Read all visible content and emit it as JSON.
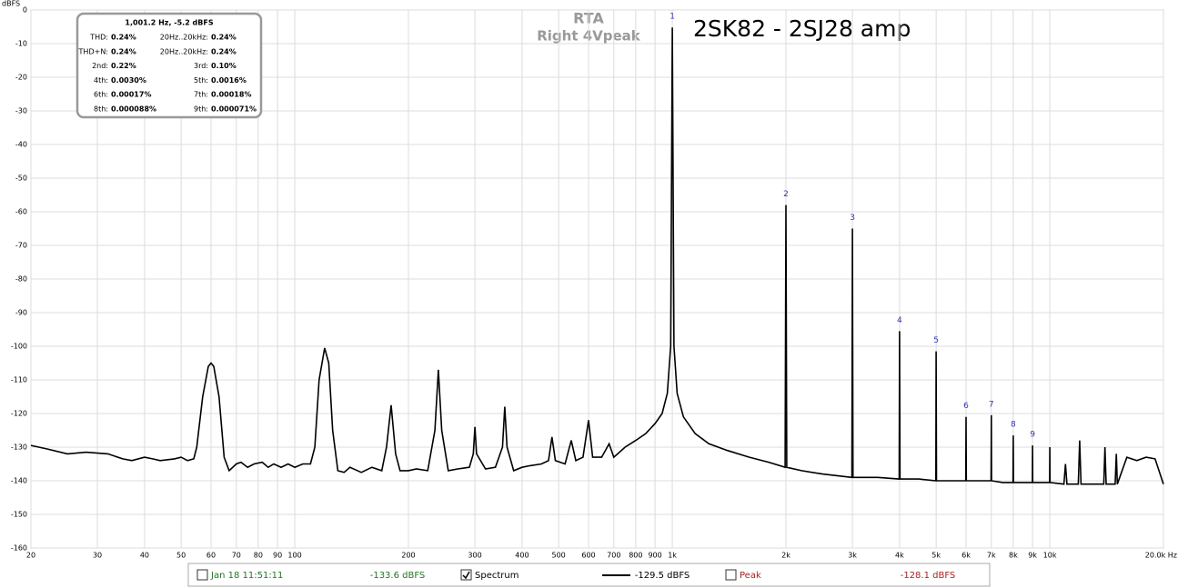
{
  "chart_data": {
    "type": "line",
    "title": "RTA",
    "subtitle": "Right 4Vpeak",
    "annotation": "2SK82 - 2SJ28 amp",
    "y_label": "dBFS",
    "x_scale": "log",
    "grid": true,
    "xlim": [
      20,
      20000
    ],
    "ylim": [
      -160,
      0
    ],
    "yticks": [
      0,
      -10,
      -20,
      -30,
      -40,
      -50,
      -60,
      -70,
      -80,
      -90,
      -100,
      -110,
      -120,
      -130,
      -140,
      -150,
      -160
    ],
    "xticks": [
      20,
      30,
      40,
      50,
      60,
      70,
      80,
      90,
      100,
      200,
      300,
      400,
      500,
      600,
      700,
      800,
      900,
      {
        "value": 1000,
        "label": "1k"
      },
      {
        "value": 2000,
        "label": "2k"
      },
      {
        "value": 3000,
        "label": "3k"
      },
      {
        "value": 4000,
        "label": "4k"
      },
      {
        "value": 5000,
        "label": "5k"
      },
      {
        "value": 6000,
        "label": "6k"
      },
      {
        "value": 7000,
        "label": "7k"
      },
      {
        "value": 8000,
        "label": "8k"
      },
      {
        "value": 9000,
        "label": "9k"
      },
      {
        "value": 10000,
        "label": "10k"
      },
      {
        "value": 20000,
        "label": "20.0k Hz"
      }
    ],
    "x": [
      20,
      22,
      25,
      28,
      32,
      35,
      37,
      40,
      42,
      44,
      48,
      50,
      52,
      54,
      55,
      57,
      59,
      60,
      61,
      63,
      65,
      67,
      70,
      72,
      75,
      78,
      82,
      85,
      88,
      92,
      96,
      100,
      105,
      110,
      113,
      116,
      120,
      123,
      126,
      130,
      135,
      140,
      150,
      160,
      170,
      175,
      180,
      185,
      190,
      200,
      210,
      225,
      235,
      240,
      245,
      255,
      270,
      290,
      297,
      300,
      303,
      320,
      340,
      355,
      360,
      365,
      380,
      400,
      420,
      450,
      470,
      480,
      490,
      520,
      540,
      555,
      580,
      600,
      615,
      650,
      680,
      700,
      750,
      800,
      850,
      900,
      940,
      970,
      990,
      1000,
      1010,
      1030,
      1070,
      1150,
      1250,
      1400,
      1600,
      1800,
      1990,
      2000,
      2010,
      2200,
      2500,
      2990,
      3000,
      3010,
      3500,
      3990,
      4000,
      4010,
      4500,
      4990,
      5000,
      5010,
      5500,
      5990,
      6000,
      6010,
      6500,
      6990,
      7000,
      7010,
      7500,
      7990,
      8000,
      8010,
      8500,
      8990,
      9000,
      9010,
      9990,
      10000,
      10010,
      10900,
      11000,
      11100,
      11900,
      12000,
      12100,
      13900,
      14000,
      14100,
      14900,
      15000,
      15100,
      16000,
      17000,
      18000,
      19000,
      20000
    ],
    "series": [
      {
        "name": "Spectrum",
        "color": "#000000",
        "values": [
          -129.5,
          -130.5,
          -132,
          -131.5,
          -132,
          -133.5,
          -134,
          -133,
          -133.5,
          -134,
          -133.5,
          -133,
          -134,
          -133.5,
          -130,
          -115,
          -106,
          -105,
          -106,
          -115,
          -133,
          -137,
          -135,
          -134.5,
          -136,
          -135,
          -134.5,
          -136,
          -135,
          -136,
          -135,
          -136,
          -135,
          -135,
          -130,
          -110,
          -100.5,
          -105,
          -125,
          -137,
          -137.5,
          -136,
          -137.5,
          -136,
          -137,
          -130,
          -117.5,
          -132,
          -137,
          -137,
          -136.5,
          -137,
          -125,
          -107,
          -125,
          -137,
          -136.5,
          -136,
          -132,
          -124,
          -132,
          -136.5,
          -136,
          -130,
          -118,
          -130,
          -137,
          -136,
          -135.5,
          -135,
          -134,
          -127,
          -134,
          -135,
          -128,
          -134,
          -133,
          -122,
          -133,
          -133,
          -129,
          -133,
          -130,
          -128,
          -126,
          -123,
          -120,
          -114,
          -100,
          -5.2,
          -100,
          -114,
          -121,
          -126,
          -129,
          -131,
          -133,
          -134.5,
          -136,
          -58,
          -136,
          -137,
          -138,
          -139,
          -65,
          -139,
          -139,
          -139.5,
          -95.5,
          -139.5,
          -139.5,
          -140,
          -101.5,
          -140,
          -140,
          -140,
          -121,
          -140,
          -140,
          -140,
          -120.5,
          -140,
          -140.5,
          -140.5,
          -126.5,
          -140.5,
          -140.5,
          -140.5,
          -129.5,
          -140.5,
          -140.5,
          -130,
          -140.5,
          -141,
          -135,
          -141,
          -141,
          -128,
          -141,
          -141,
          -130,
          -141,
          -141,
          -132,
          -141,
          -133,
          -134,
          -133,
          -133.5,
          -141
        ]
      }
    ],
    "harmonic_markers": [
      {
        "label": "1",
        "x": 1000,
        "y": -5.2
      },
      {
        "label": "2",
        "x": 2000,
        "y": -58
      },
      {
        "label": "3",
        "x": 3000,
        "y": -65
      },
      {
        "label": "4",
        "x": 4000,
        "y": -95.5
      },
      {
        "label": "5",
        "x": 5000,
        "y": -101.5
      },
      {
        "label": "6",
        "x": 6000,
        "y": -121
      },
      {
        "label": "7",
        "x": 7000,
        "y": -120.5
      },
      {
        "label": "8",
        "x": 8000,
        "y": -126.5
      },
      {
        "label": "9",
        "x": 9000,
        "y": -129.5
      }
    ],
    "marker_color": "#3333bb"
  },
  "info_box": {
    "header": "1,001.2 Hz, -5.2 dBFS",
    "rows": [
      [
        {
          "label": "THD:",
          "value": "0.24%"
        },
        {
          "label": "20Hz..20kHz:",
          "value": "0.24%"
        }
      ],
      [
        {
          "label": "THD+N:",
          "value": "0.24%"
        },
        {
          "label": "20Hz..20kHz:",
          "value": "0.24%"
        }
      ],
      [
        {
          "label": "2nd:",
          "value": "0.22%"
        },
        {
          "label": "3rd:",
          "value": "0.10%"
        }
      ],
      [
        {
          "label": "4th:",
          "value": "0.0030%"
        },
        {
          "label": "5th:",
          "value": "0.0016%"
        }
      ],
      [
        {
          "label": "6th:",
          "value": "0.00017%"
        },
        {
          "label": "7th:",
          "value": "0.00018%"
        }
      ],
      [
        {
          "label": "8th:",
          "value": "0.000088%"
        },
        {
          "label": "9th:",
          "value": "0.000071%"
        }
      ]
    ]
  },
  "legend_bar": [
    {
      "label": "Jan 18 11:51:11",
      "value": "-133.6 dBFS",
      "checked": false,
      "color": "#227722",
      "line": false
    },
    {
      "label": "Spectrum",
      "value": "-129.5 dBFS",
      "checked": true,
      "color": "#000000",
      "line": true
    },
    {
      "label": "Peak",
      "value": "-128.1 dBFS",
      "checked": false,
      "color": "#aa2222",
      "line": false
    }
  ]
}
